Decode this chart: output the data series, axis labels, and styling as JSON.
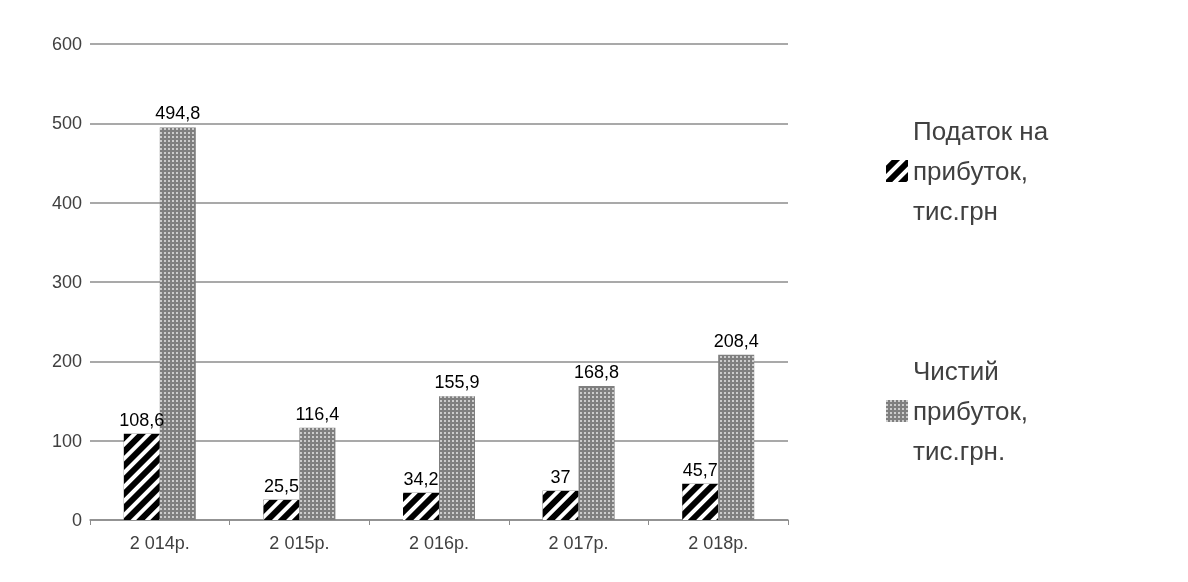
{
  "chart_data": {
    "type": "bar",
    "categories": [
      "2 014р.",
      "2 015р.",
      "2 016р.",
      "2 017р.",
      "2 018р."
    ],
    "series": [
      {
        "name": "Податок на прибуток, тис.грн",
        "color": "#000000",
        "values": [
          108.6,
          25.5,
          34.2,
          37,
          45.7
        ],
        "value_labels": [
          "108,6",
          "25,5",
          "34,2",
          "37",
          "45,7"
        ]
      },
      {
        "name": "Чистий прибуток,тис.грн.",
        "color": "#7f7f7f",
        "values": [
          494.8,
          116.4,
          155.9,
          168.8,
          208.4
        ],
        "value_labels": [
          "494,8",
          "116,4",
          "155,9",
          "168,8",
          "208,4"
        ]
      }
    ],
    "ylim": [
      0,
      600
    ],
    "yticks": [
      0,
      100,
      200,
      300,
      400,
      500,
      600
    ],
    "grid": "y",
    "legend": "right"
  }
}
